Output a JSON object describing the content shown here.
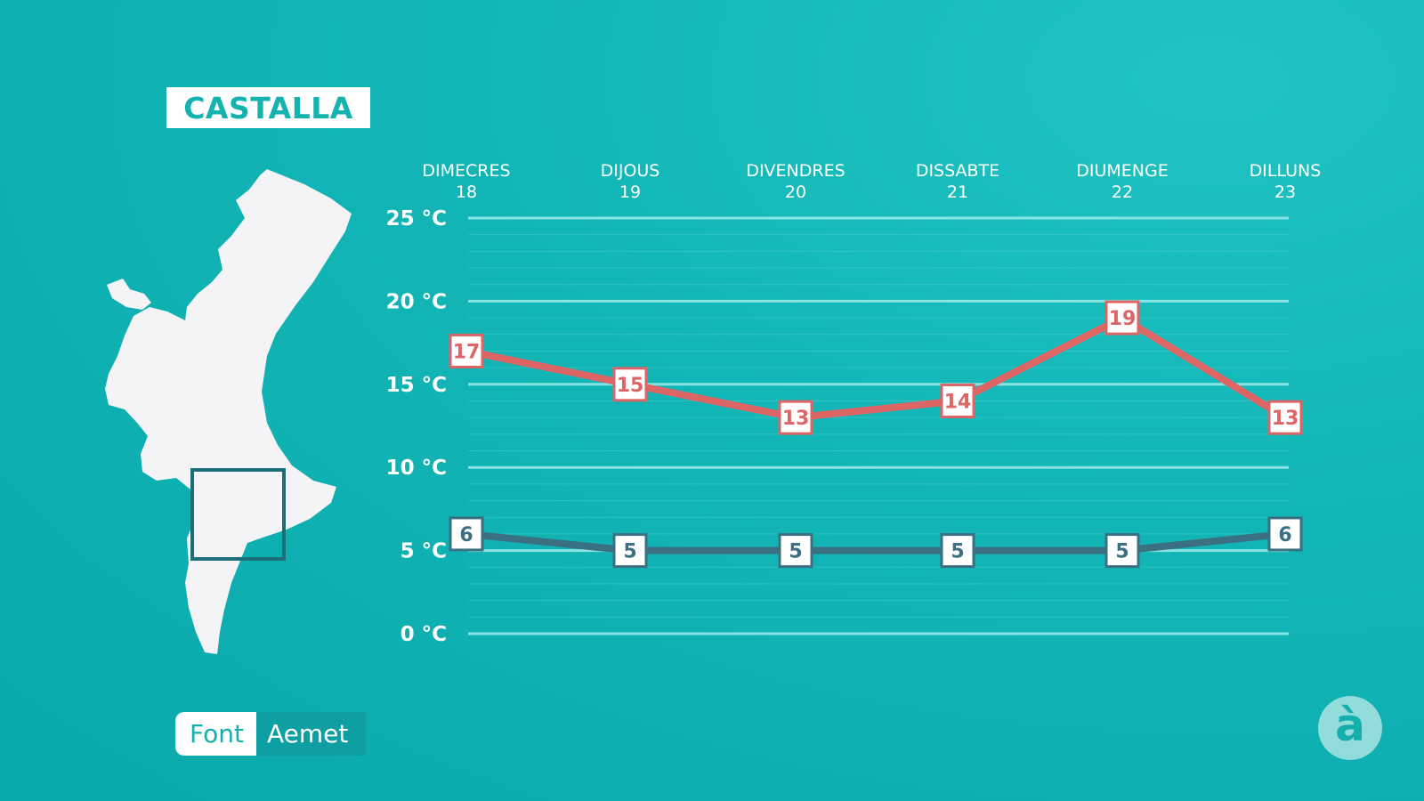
{
  "location": "CASTALLA",
  "source": {
    "label": "Font",
    "value": "Aemet"
  },
  "logo_glyph": "à",
  "colors": {
    "max_line": "#de6565",
    "min_line": "#3b7082",
    "grid": "#8fe6e6",
    "map_fill": "#f4f4f7",
    "map_marker": "#1c6e78"
  },
  "chart_data": {
    "type": "line",
    "categories": [
      {
        "day": "DIMECRES",
        "date": "18"
      },
      {
        "day": "DIJOUS",
        "date": "19"
      },
      {
        "day": "DIVENDRES",
        "date": "20"
      },
      {
        "day": "DISSABTE",
        "date": "21"
      },
      {
        "day": "DIUMENGE",
        "date": "22"
      },
      {
        "day": "DILLUNS",
        "date": "23"
      }
    ],
    "yticks": [
      {
        "value": 25,
        "label": "25 °C"
      },
      {
        "value": 20,
        "label": "20 °C"
      },
      {
        "value": 15,
        "label": "15 °C"
      },
      {
        "value": 10,
        "label": "10 °C"
      },
      {
        "value": 5,
        "label": "5 °C"
      },
      {
        "value": 0,
        "label": "0 °C"
      }
    ],
    "ylim": [
      0,
      25
    ],
    "grid": true,
    "series": [
      {
        "values": [
          17,
          15,
          13,
          14,
          19,
          13
        ]
      },
      {
        "values": [
          6,
          5,
          5,
          5,
          5,
          6
        ]
      }
    ]
  }
}
